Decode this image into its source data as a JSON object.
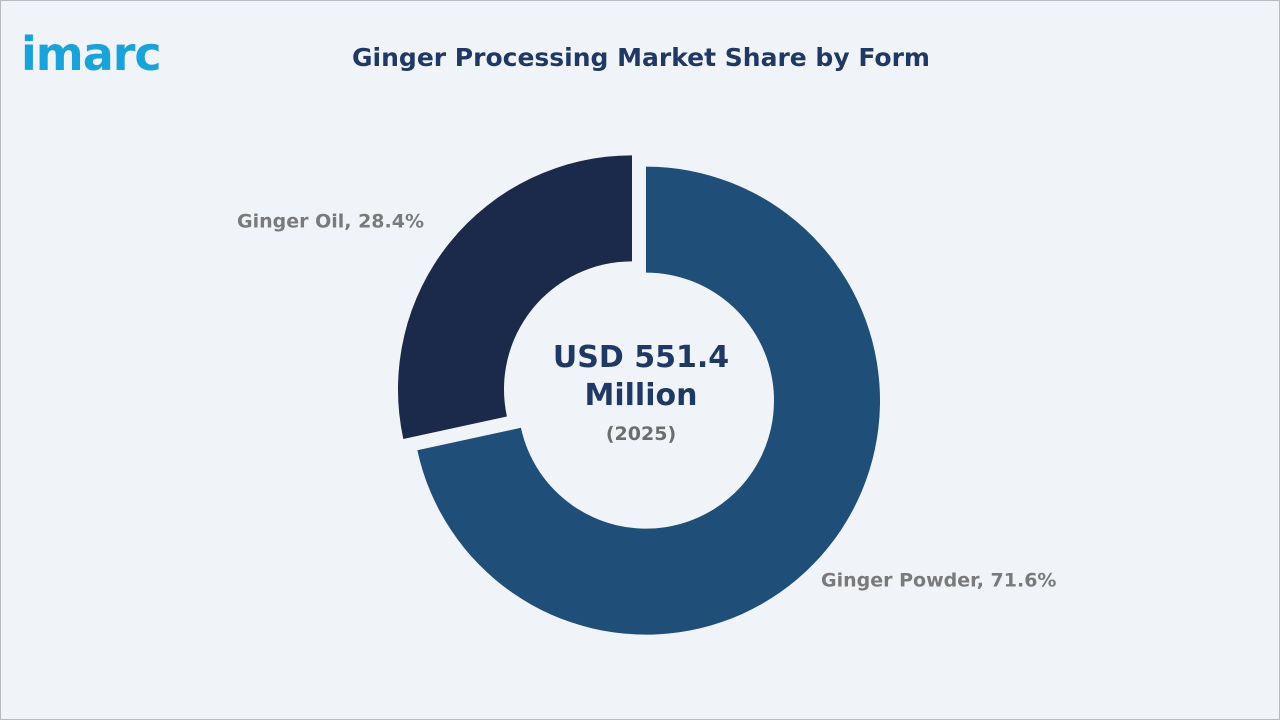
{
  "logo": "imarc",
  "chart_data": {
    "type": "pie",
    "title": "Ginger Processing Market Share by Form",
    "values": [
      71.6,
      28.4
    ],
    "value_labels": [
      "Ginger Powder, 71.6%",
      "Ginger Oil, 28.4%"
    ],
    "colors": [
      "#1f4e79",
      "#1b2a4a"
    ],
    "center_label": "USD 551.4 Million",
    "center_sublabel": "(2025)"
  }
}
